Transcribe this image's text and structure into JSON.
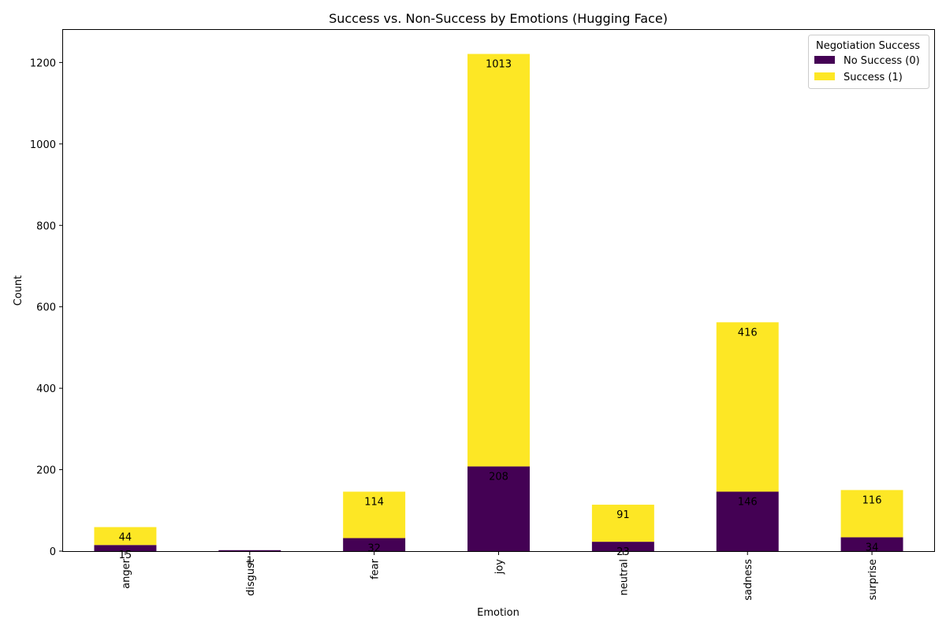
{
  "chart_data": {
    "type": "bar",
    "stacked": true,
    "title": "Success vs. Non-Success by Emotions (Hugging Face)",
    "xlabel": "Emotion",
    "ylabel": "Count",
    "categories": [
      "anger",
      "disgust",
      "fear",
      "joy",
      "neutral",
      "sadness",
      "surprise"
    ],
    "series": [
      {
        "name": "No Success (0)",
        "color": "#440154",
        "values": [
          15,
          1,
          32,
          208,
          23,
          146,
          34
        ],
        "labels": [
          "15",
          "1",
          "32",
          "208",
          "23",
          "146",
          "34"
        ]
      },
      {
        "name": "Success (1)",
        "color": "#fde725",
        "values": [
          44,
          0,
          114,
          1013,
          91,
          416,
          116
        ],
        "labels": [
          "44",
          "",
          "114",
          "1013",
          "91",
          "416",
          "116"
        ]
      }
    ],
    "ylim": [
      0,
      1280
    ],
    "yticks": [
      0,
      200,
      400,
      600,
      800,
      1000,
      1200
    ],
    "grid": false,
    "legend": {
      "title": "Negotiation Success",
      "placement": "top-right"
    }
  }
}
